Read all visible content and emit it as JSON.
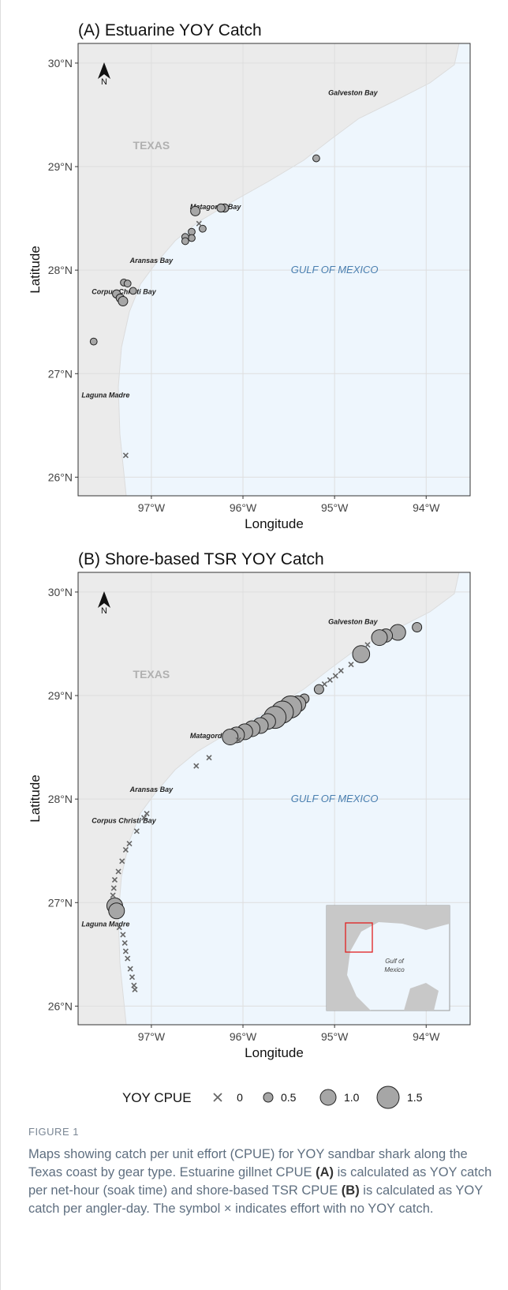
{
  "chart_data": [
    {
      "type": "scatter",
      "title": "(A) Estuarine YOY Catch",
      "xlabel": "Longitude",
      "ylabel": "Latitude",
      "xlim": [
        -97.8,
        -93.52
      ],
      "ylim": [
        25.82,
        30.19
      ],
      "xticks": [
        {
          "value": -97,
          "label": "97°W"
        },
        {
          "value": -96,
          "label": "96°W"
        },
        {
          "value": -95,
          "label": "95°W"
        },
        {
          "value": -94,
          "label": "94°W"
        }
      ],
      "yticks": [
        {
          "value": 26,
          "label": "26°N"
        },
        {
          "value": 27,
          "label": "27°N"
        },
        {
          "value": 28,
          "label": "28°N"
        },
        {
          "value": 29,
          "label": "29°N"
        },
        {
          "value": 30,
          "label": "30°N"
        }
      ],
      "north": "N",
      "annotations": [
        "TEXAS",
        "Galveston Bay",
        "Matagorda Bay",
        "Aransas Bay",
        "Corpus Christi Bay",
        "Laguna Madre",
        "GULF OF MEXICO"
      ],
      "series": [
        {
          "name": "YOY CPUE",
          "color": "#a6a6a6",
          "x": [
            -95.2,
            -96.52,
            -96.2,
            -96.24,
            -96.44,
            -96.56,
            -96.56,
            -96.63,
            -96.63,
            -96.48,
            -97.3,
            -97.26,
            -97.2,
            -97.38,
            -97.34,
            -97.31,
            -97.63,
            -97.28
          ],
          "values": [
            29.08,
            28.57,
            28.6,
            28.6,
            28.4,
            28.37,
            28.31,
            28.32,
            28.28,
            28.45,
            27.88,
            27.87,
            27.8,
            27.77,
            27.73,
            27.7,
            27.31,
            26.21
          ],
          "sizes": [
            0.3,
            0.5,
            0.4,
            0.4,
            0.3,
            0.3,
            0.3,
            0.3,
            0.3,
            0,
            0.3,
            0.3,
            0.3,
            0.4,
            0.4,
            0.5,
            0.3,
            0
          ]
        }
      ]
    },
    {
      "type": "scatter",
      "title": "(B) Shore-based TSR YOY Catch",
      "xlabel": "Longitude",
      "ylabel": "Latitude",
      "xlim": [
        -97.8,
        -93.52
      ],
      "ylim": [
        25.82,
        30.19
      ],
      "xticks": [
        {
          "value": -97,
          "label": "97°W"
        },
        {
          "value": -96,
          "label": "96°W"
        },
        {
          "value": -95,
          "label": "95°W"
        },
        {
          "value": -94,
          "label": "94°W"
        }
      ],
      "yticks": [
        {
          "value": 26,
          "label": "26°N"
        },
        {
          "value": 27,
          "label": "27°N"
        },
        {
          "value": 28,
          "label": "28°N"
        },
        {
          "value": 29,
          "label": "29°N"
        },
        {
          "value": 30,
          "label": "30°N"
        }
      ],
      "north": "N",
      "annotations": [
        "TEXAS",
        "Galveston Bay",
        "Matagorda Bay",
        "Aransas Bay",
        "Corpus Christi Bay",
        "Laguna Madre",
        "GULF OF MEXICO"
      ],
      "inset_label": [
        "Gulf of",
        "Mexico"
      ],
      "series": [
        {
          "name": "YOY CPUE",
          "color": "#a6a6a6",
          "x": [
            -94.1,
            -94.31,
            -94.44,
            -94.51,
            -94.71,
            -95.17,
            -95.33,
            -95.4,
            -95.48,
            -95.57,
            -95.65,
            -95.73,
            -95.81,
            -95.9,
            -95.98,
            -96.07,
            -96.14,
            -97.4,
            -97.38,
            -94.64,
            -94.82,
            -94.93,
            -94.99,
            -95.05,
            -95.11,
            -96.05,
            -96.37,
            -96.51,
            -97.05,
            -97.08,
            -97.16,
            -97.24,
            -97.28,
            -97.32,
            -97.36,
            -97.4,
            -97.41,
            -97.42,
            -97.35,
            -97.31,
            -97.29,
            -97.28,
            -97.26,
            -97.23,
            -97.21,
            -97.19,
            -97.18
          ],
          "values": [
            29.66,
            29.61,
            29.58,
            29.56,
            29.4,
            29.06,
            28.97,
            28.92,
            28.89,
            28.84,
            28.79,
            28.75,
            28.71,
            28.68,
            28.65,
            28.62,
            28.6,
            26.97,
            26.92,
            29.49,
            29.3,
            29.24,
            29.19,
            29.15,
            29.11,
            28.57,
            28.4,
            28.32,
            27.86,
            27.82,
            27.69,
            27.57,
            27.51,
            27.4,
            27.3,
            27.22,
            27.14,
            27.07,
            26.76,
            26.69,
            26.61,
            26.53,
            26.46,
            26.36,
            26.28,
            26.2,
            26.16
          ],
          "sizes": [
            0.5,
            1.0,
            0.8,
            1.0,
            1.1,
            0.5,
            0.5,
            1.0,
            1.5,
            1.5,
            1.5,
            1.0,
            1.0,
            1.0,
            1.0,
            1.0,
            1.0,
            1.0,
            1.0,
            0,
            0,
            0,
            0,
            0,
            0,
            0,
            0,
            0,
            0,
            0,
            0,
            0,
            0,
            0,
            0,
            0,
            0,
            0,
            0,
            0,
            0,
            0,
            0,
            0,
            0,
            0,
            0
          ]
        }
      ]
    }
  ],
  "legend": {
    "title": "YOY CPUE",
    "values": [
      0,
      0.5,
      {
        "value": 1,
        "label": "1.0"
      },
      1.5
    ]
  },
  "caption": {
    "label": "FIGURE 1",
    "parts": [
      "Maps showing catch per unit effort (CPUE) for YOY sandbar shark along the Texas coast by gear type. Estuarine gillnet CPUE ",
      "(A)",
      " is calculated as YOY catch per net-hour (soak time) and shore-based TSR CPUE ",
      "(B)",
      " is calculated as YOY catch per angler-day. The symbol × indicates effort with no YOY catch."
    ]
  }
}
